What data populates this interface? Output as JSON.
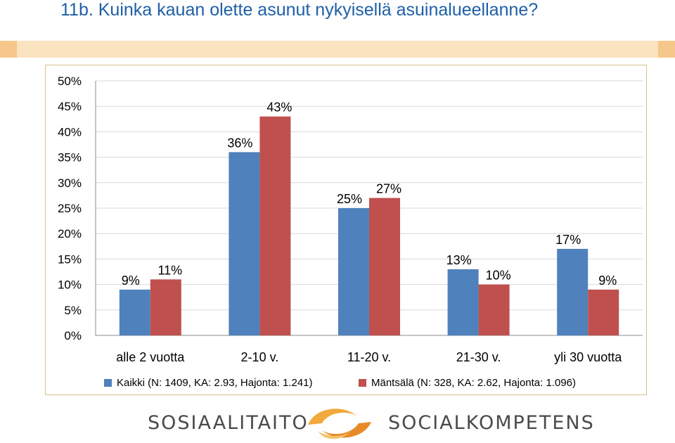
{
  "title": "11b. Kuinka kauan olette asunut nykyisellä asuinalueellanne?",
  "chart_data": {
    "type": "bar",
    "categories": [
      "alle 2 vuotta",
      "2-10 v.",
      "11-20 v.",
      "21-30 v.",
      "yli 30 vuotta"
    ],
    "series": [
      {
        "name": "Kaikki (N: 1409, KA: 2.93, Hajonta: 1.241)",
        "values": [
          9,
          36,
          25,
          13,
          17
        ],
        "labels": [
          "9%",
          "36%",
          "25%",
          "13%",
          "17%"
        ],
        "color": "#4f81bd"
      },
      {
        "name": "Mäntsälä (N: 328, KA: 2.62, Hajonta: 1.096)",
        "values": [
          11,
          43,
          27,
          10,
          9
        ],
        "labels": [
          "11%",
          "43%",
          "27%",
          "10%",
          "9%"
        ],
        "color": "#c0504d"
      }
    ],
    "yticks": [
      "0%",
      "5%",
      "10%",
      "15%",
      "20%",
      "25%",
      "30%",
      "35%",
      "40%",
      "45%",
      "50%"
    ],
    "ylim": [
      0,
      50
    ],
    "grid": true,
    "legend_position": "bottom"
  },
  "footer": {
    "left_text": "SOSIAALITAITO",
    "right_text": "SOCIALKOMPETENS",
    "logo_icon": "swirl-logo-icon"
  }
}
